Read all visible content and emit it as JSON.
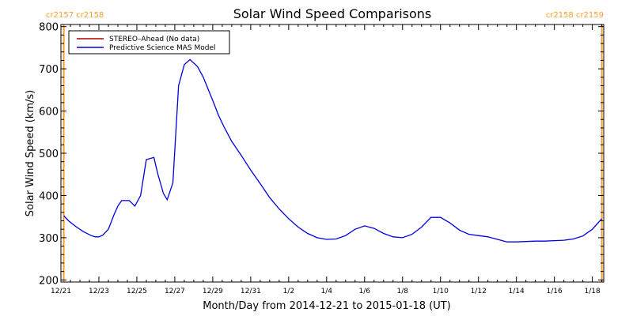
{
  "chart_data": {
    "type": "line",
    "title": "Solar Wind Speed Comparisons",
    "xlabel": "Month/Day from 2014-12-21 to 2015-01-18 (UT)",
    "ylabel": "Solar Wind Speed (km/s)",
    "x_tick_labels": [
      "12/21",
      "12/23",
      "12/25",
      "12/27",
      "12/29",
      "12/31",
      "1/2",
      "1/4",
      "1/6",
      "1/8",
      "1/10",
      "1/12",
      "1/14",
      "1/16",
      "1/18"
    ],
    "y_ticks": [
      200,
      300,
      400,
      500,
      600,
      700,
      800
    ],
    "y_tick_labels": [
      "200",
      "300",
      "400",
      "500",
      "600",
      "700",
      "800"
    ],
    "xlim": [
      0,
      28.6
    ],
    "ylim": [
      195,
      805
    ],
    "grid": false,
    "legend_position": "top-left",
    "legend": [
      {
        "label": "STEREO–Ahead (No data)",
        "color": "#aa0000"
      },
      {
        "label": "Predictive Science MAS Model",
        "color": "#0000dd"
      }
    ],
    "series": [
      {
        "name": "Predictive Science MAS Model",
        "color": "#0000dd",
        "x": [
          0.15,
          0.4,
          0.8,
          1.2,
          1.6,
          1.8,
          2.0,
          2.2,
          2.5,
          2.8,
          3.0,
          3.2,
          3.6,
          3.9,
          4.2,
          4.5,
          4.9,
          5.1,
          5.4,
          5.6,
          5.9,
          6.2,
          6.5,
          6.8,
          7.2,
          7.5,
          7.7,
          8.0,
          8.3,
          8.6,
          9.0,
          9.5,
          10.0,
          10.5,
          11.0,
          11.5,
          12.0,
          12.5,
          13.0,
          13.5,
          14.0,
          14.5,
          15.0,
          15.5,
          16.0,
          16.5,
          17.0,
          17.5,
          18.0,
          18.5,
          19.0,
          19.5,
          20.0,
          20.5,
          21.0,
          21.5,
          22.0,
          22.5,
          23.0,
          23.5,
          24.0,
          24.5,
          25.0,
          25.5,
          26.0,
          26.5,
          27.0,
          27.5,
          28.0,
          28.5
        ],
        "y": [
          352,
          340,
          326,
          314,
          305,
          302,
          302,
          306,
          320,
          355,
          375,
          388,
          388,
          375,
          400,
          485,
          490,
          452,
          405,
          390,
          430,
          660,
          710,
          722,
          705,
          680,
          658,
          625,
          590,
          562,
          528,
          495,
          460,
          428,
          395,
          368,
          345,
          325,
          310,
          300,
          296,
          297,
          305,
          320,
          328,
          322,
          310,
          302,
          300,
          308,
          325,
          348,
          348,
          335,
          318,
          308,
          305,
          302,
          296,
          290,
          290,
          291,
          292,
          292,
          293,
          294,
          297,
          304,
          320,
          345
        ]
      }
    ],
    "vertical_markers": [
      {
        "x": 0.15,
        "color": "#f0a030",
        "label": "cr2157 cr2158"
      },
      {
        "x": 28.5,
        "color": "#f0a030",
        "label": "cr2158 cr2159"
      }
    ]
  }
}
